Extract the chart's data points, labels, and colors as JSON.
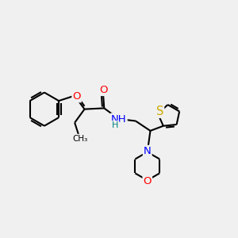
{
  "bg_color": "#f0f0f0",
  "bond_color": "#000000",
  "lw": 1.5,
  "atom_colors": {
    "O": "#ff0000",
    "N": "#0000ff",
    "S": "#ccaa00",
    "H": "#008080",
    "C": "#000000"
  },
  "fs": 9.5,
  "fig_w": 3.0,
  "fig_h": 3.0,
  "xlim": [
    0,
    12
  ],
  "ylim": [
    0,
    10
  ]
}
